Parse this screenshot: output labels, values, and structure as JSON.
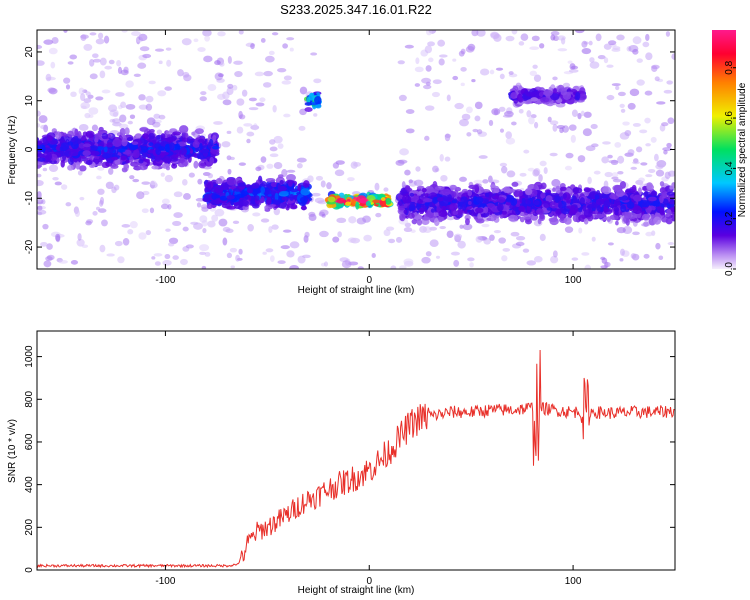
{
  "title": "S233.2025.347.16.01.R22",
  "colors": {
    "snr_line": "#e8302a",
    "heatmap_low": "#d9c8f5",
    "heatmap_mid": "#6a1fe0",
    "axis": "#000000"
  },
  "chart_data": [
    {
      "type": "heatmap",
      "xlabel": "Height of straight line (km)",
      "ylabel": "Frequency (Hz)",
      "xlim": [
        -163,
        150
      ],
      "ylim": [
        -24.5,
        24.5
      ],
      "x_ticks": [
        -100,
        0,
        100
      ],
      "y_ticks": [
        -20,
        -10,
        0,
        10,
        20
      ],
      "colorbar": {
        "label": "Normalized spectral amplitude",
        "range": [
          0.0,
          0.95
        ],
        "ticks": [
          "0.0",
          "0.2",
          "0.4",
          "0.6",
          "0.8"
        ],
        "colormap": [
          "#f0e8ff",
          "#5a00e0",
          "#0020ff",
          "#00c8ff",
          "#00e060",
          "#f0f000",
          "#ff8000",
          "#ff0040",
          "#ff1a8c"
        ]
      },
      "features": [
        {
          "name": "band",
          "x_range": [
            -163,
            -75
          ],
          "freq_center": 0,
          "freq_spread": 5,
          "amplitude": 0.2
        },
        {
          "name": "band",
          "x_range": [
            -80,
            -30
          ],
          "freq_center": -9,
          "freq_spread": 4,
          "amplitude": 0.25
        },
        {
          "name": "band",
          "x_range": [
            -20,
            10
          ],
          "freq_center": -10.5,
          "freq_spread": 1.5,
          "amplitude": 0.9
        },
        {
          "name": "band",
          "x_range": [
            -30,
            -18
          ],
          "freq_center": 10,
          "freq_spread": 2,
          "amplitude": 0.45
        },
        {
          "name": "band",
          "x_range": [
            15,
            150
          ],
          "freq_center": -11,
          "freq_spread": 5,
          "amplitude": 0.18
        },
        {
          "name": "band",
          "x_range": [
            70,
            105
          ],
          "freq_center": 11,
          "freq_spread": 2,
          "amplitude": 0.15
        }
      ],
      "gaps": [
        [
          -25,
          -2,
          0,
          24.5
        ],
        [
          -2,
          15,
          -6,
          24.5
        ]
      ]
    },
    {
      "type": "line",
      "xlabel": "Height of straight line (km)",
      "ylabel": "SNR (10 * v/v)",
      "xlim": [
        -163,
        150
      ],
      "ylim": [
        0,
        1120
      ],
      "x_ticks": [
        -100,
        0,
        100
      ],
      "y_ticks": [
        0,
        200,
        400,
        600,
        800,
        1000
      ],
      "series": [
        {
          "x": [
            -163,
            -150,
            -140,
            -130,
            -120,
            -110,
            -100,
            -90,
            -80,
            -70,
            -65,
            -62,
            -60,
            -55,
            -50,
            -45,
            -40,
            -35,
            -30,
            -25,
            -20,
            -15,
            -10,
            -5,
            0,
            5,
            10,
            15,
            20,
            25,
            30,
            35,
            40,
            50,
            60,
            70,
            75,
            80,
            82,
            84,
            90,
            95,
            100,
            105,
            110,
            120,
            130,
            140,
            150
          ],
          "y": [
            20,
            20,
            20,
            20,
            20,
            20,
            20,
            20,
            20,
            20,
            25,
            60,
            120,
            180,
            200,
            230,
            260,
            300,
            330,
            350,
            380,
            400,
            420,
            440,
            470,
            510,
            560,
            620,
            680,
            710,
            720,
            730,
            740,
            740,
            750,
            750,
            755,
            760,
            760,
            760,
            750,
            745,
            740,
            745,
            740,
            735,
            740,
            740,
            745
          ]
        }
      ]
    }
  ]
}
